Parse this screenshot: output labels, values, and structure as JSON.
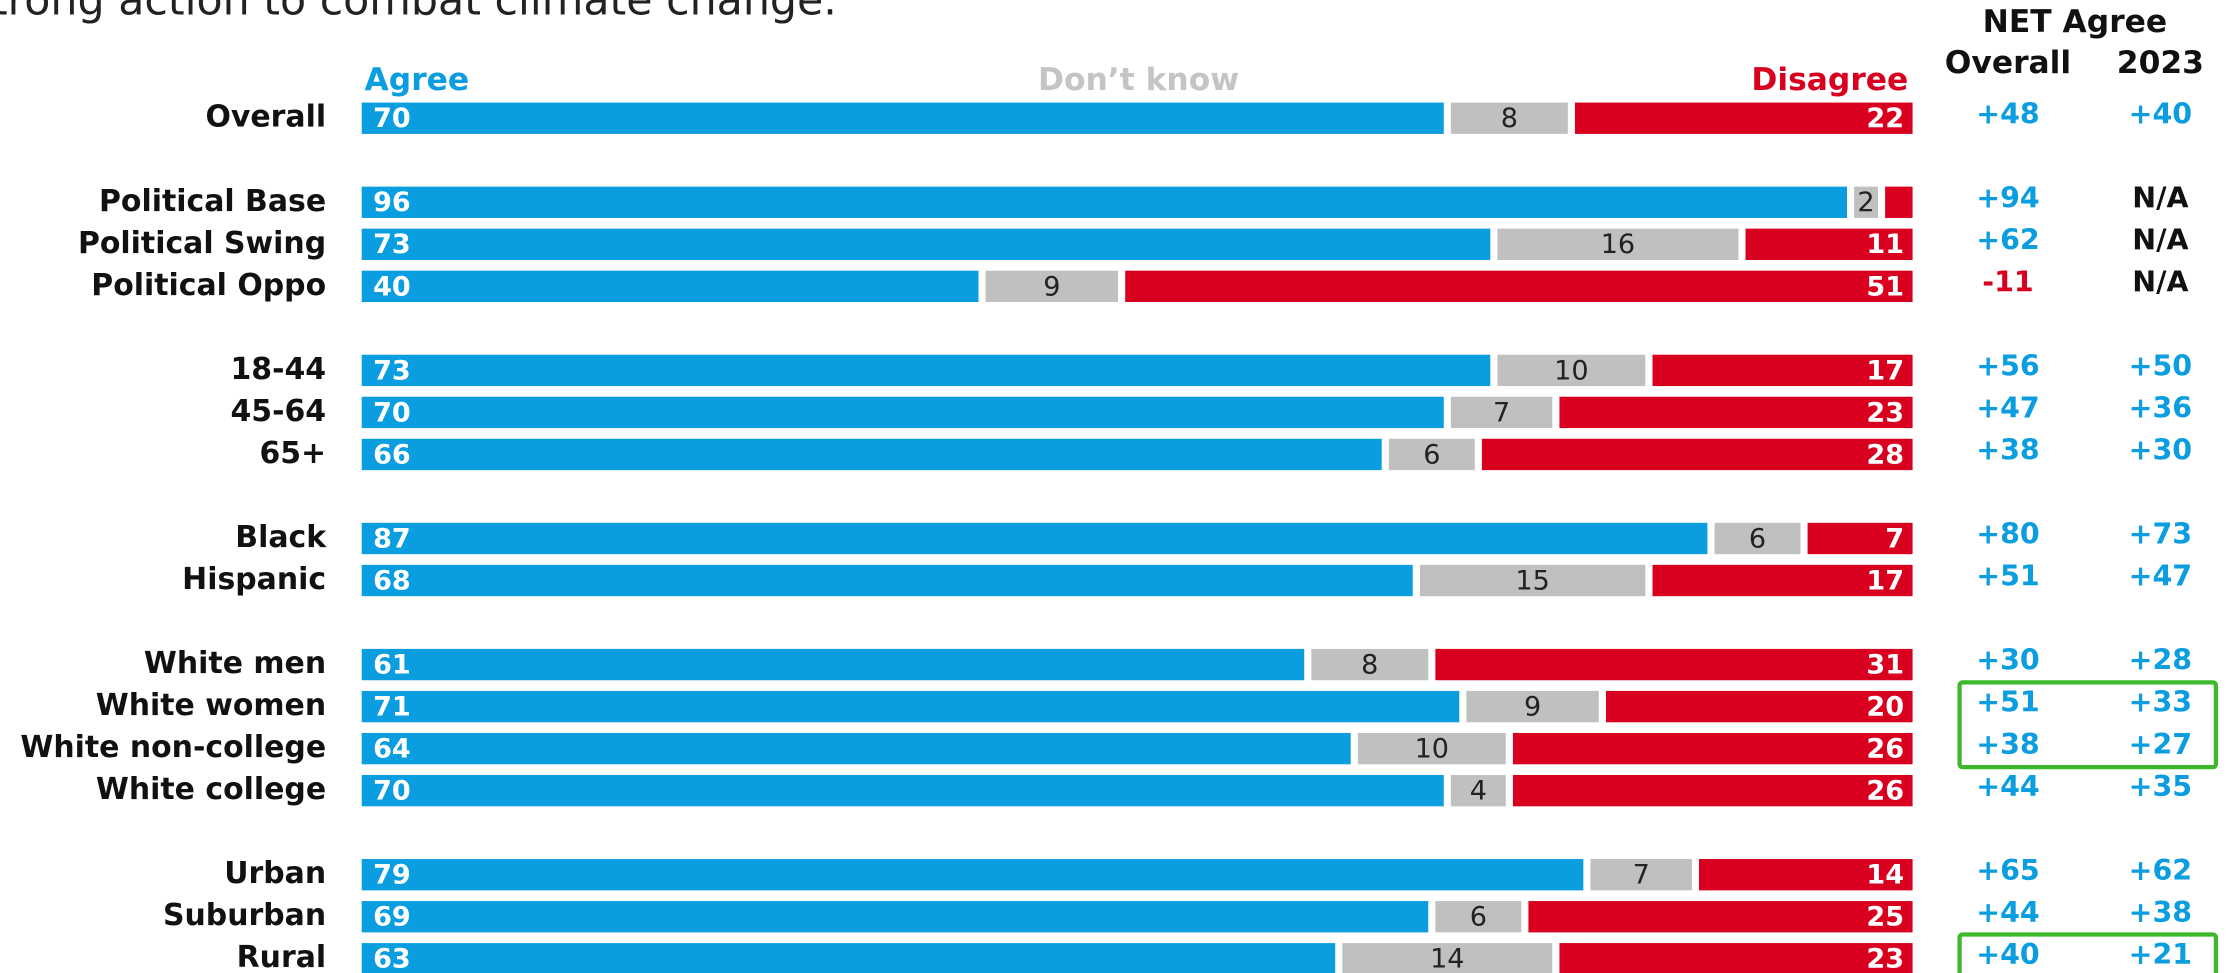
{
  "chart_data": {
    "type": "stacked_barh",
    "title": "strong action to combat climate change.",
    "categories": [
      "Overall",
      "Political Base",
      "Political Swing",
      "Political Oppo",
      "18-44",
      "45-64",
      "65+",
      "Black",
      "Hispanic",
      "White men",
      "White women",
      "White non-college",
      "White college",
      "Urban",
      "Suburban",
      "Rural"
    ],
    "series": [
      {
        "name": "Agree",
        "color": "#0a9de0",
        "values": [
          70,
          96,
          73,
          40,
          73,
          70,
          66,
          87,
          68,
          61,
          71,
          64,
          70,
          79,
          69,
          63
        ]
      },
      {
        "name": "Don’t know",
        "color": "#c0c0bf",
        "values": [
          8,
          2,
          16,
          9,
          10,
          7,
          6,
          6,
          15,
          8,
          9,
          10,
          4,
          7,
          6,
          14
        ]
      },
      {
        "name": "Disagree",
        "color": "#d9001f",
        "values": [
          22,
          2,
          11,
          51,
          17,
          23,
          28,
          7,
          17,
          31,
          20,
          26,
          26,
          14,
          25,
          23
        ]
      }
    ],
    "xlim": [
      0,
      100
    ],
    "net_agree": {
      "title": "NET Agree",
      "columns": [
        "Overall",
        "2023"
      ],
      "rows": [
        [
          "+48",
          "+40"
        ],
        [
          "+94",
          "N/A"
        ],
        [
          "+62",
          "N/A"
        ],
        [
          "-11",
          "N/A"
        ],
        [
          "+56",
          "+50"
        ],
        [
          "+47",
          "+36"
        ],
        [
          "+38",
          "+30"
        ],
        [
          "+80",
          "+73"
        ],
        [
          "+51",
          "+47"
        ],
        [
          "+30",
          "+28"
        ],
        [
          "+51",
          "+33"
        ],
        [
          "+38",
          "+27"
        ],
        [
          "+44",
          "+35"
        ],
        [
          "+65",
          "+62"
        ],
        [
          "+44",
          "+38"
        ],
        [
          "+40",
          "+21"
        ]
      ]
    }
  }
}
